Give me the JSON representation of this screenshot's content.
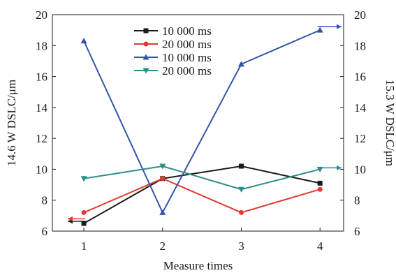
{
  "chart_data": {
    "type": "line",
    "xlabel": "Measure times",
    "ylabel_left": "14.6 W DSLC/μm",
    "ylabel_right": "15.3 W DSLC/μm",
    "x": [
      1,
      2,
      3,
      4
    ],
    "x_ticks": [
      "1",
      "2",
      "3",
      "4"
    ],
    "xlim": [
      0.6,
      4.3
    ],
    "ylim_left": [
      6,
      20
    ],
    "ylim_right": [
      6,
      20
    ],
    "y_ticks": [
      "6",
      "8",
      "10",
      "12",
      "14",
      "16",
      "18",
      "20"
    ],
    "grid": false,
    "legend_position": "top-center",
    "series": [
      {
        "name": "10 000 ms",
        "values": [
          6.5,
          9.4,
          10.2,
          9.1
        ],
        "color": "#1a1a1a",
        "marker": "square",
        "axis": "left"
      },
      {
        "name": "20 000 ms",
        "values": [
          7.2,
          9.4,
          7.2,
          8.7
        ],
        "color": "#e03a2f",
        "marker": "circle",
        "axis": "left"
      },
      {
        "name": "10 000 ms",
        "values": [
          18.3,
          7.2,
          16.8,
          19.0
        ],
        "color": "#3355a8",
        "marker": "triangle-up",
        "axis": "right"
      },
      {
        "name": "20 000 ms",
        "values": [
          9.4,
          10.2,
          8.7,
          10.0
        ],
        "color": "#2e8b8b",
        "marker": "triangle-down",
        "axis": "right"
      }
    ]
  }
}
